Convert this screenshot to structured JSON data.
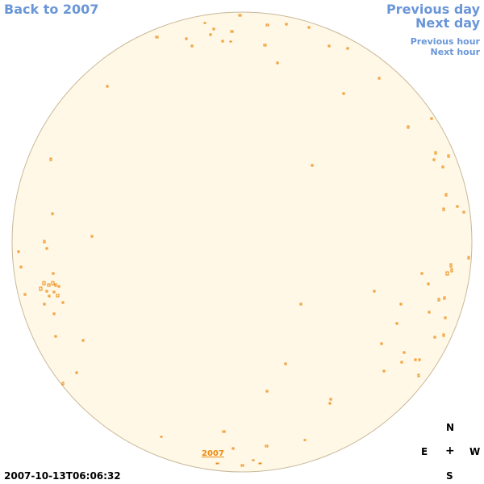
{
  "nav": {
    "back_label": "Back to 2007",
    "previous_day_label": "Previous day",
    "next_day_label": "Next day",
    "previous_hour_label": "Previous hour",
    "next_hour_label": "Next hour"
  },
  "sun": {
    "disk_fill": "#fff8e6",
    "disk_stroke": "#c9b89a",
    "marker_color": "#ee8a10",
    "year_label": "2007"
  },
  "compass": {
    "north": "N",
    "east": "E",
    "center": "+",
    "west": "W",
    "south": "S"
  },
  "footer": {
    "timestamp": "2007-10-13T06:06:32"
  }
}
